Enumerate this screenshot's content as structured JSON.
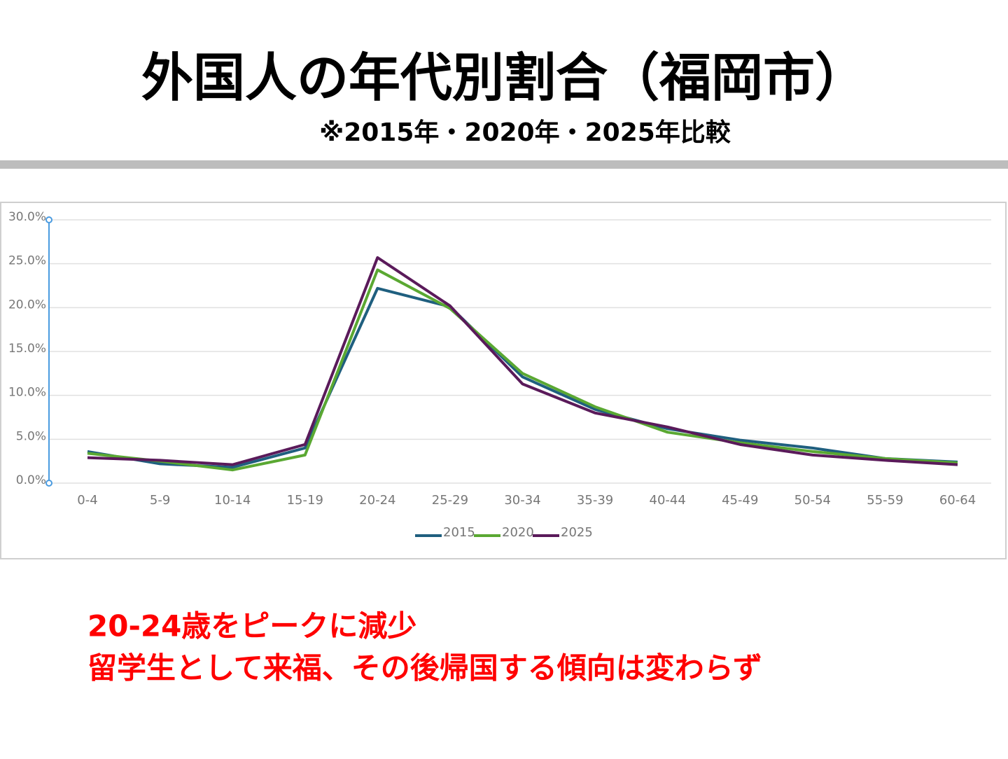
{
  "title": "外国人の年代別割合（福岡市）",
  "subtitle": "※2015年・2020年・2025年比較",
  "chart_data": {
    "type": "line",
    "categories": [
      "0-4",
      "5-9",
      "10-14",
      "15-19",
      "20-24",
      "25-29",
      "30-34",
      "35-39",
      "40-44",
      "45-49",
      "50-54",
      "55-59",
      "60-64"
    ],
    "series": [
      {
        "name": "2015",
        "color": "#1f5f7f",
        "values": [
          3.6,
          2.2,
          1.8,
          4.0,
          22.2,
          20.1,
          12.1,
          8.4,
          6.2,
          4.9,
          4.0,
          2.8,
          2.4
        ]
      },
      {
        "name": "2020",
        "color": "#5aa832",
        "values": [
          3.4,
          2.5,
          1.5,
          3.2,
          24.3,
          19.9,
          12.5,
          8.7,
          5.8,
          4.6,
          3.6,
          2.8,
          2.3
        ]
      },
      {
        "name": "2025",
        "color": "#5a1a5a",
        "values": [
          2.9,
          2.6,
          2.1,
          4.4,
          25.7,
          20.2,
          11.3,
          8.0,
          6.4,
          4.4,
          3.2,
          2.6,
          2.1
        ]
      }
    ],
    "ylim": [
      0,
      30
    ],
    "yticks": [
      {
        "value": 0,
        "label": "0.0%"
      },
      {
        "value": 5,
        "label": "5.0%"
      },
      {
        "value": 10,
        "label": "10.0%"
      },
      {
        "value": 15,
        "label": "15.0%"
      },
      {
        "value": 20,
        "label": "20.0%"
      },
      {
        "value": 25,
        "label": "25.0%"
      },
      {
        "value": 30,
        "label": "30.0%"
      }
    ],
    "grid": true,
    "legend": "bottom"
  },
  "notes": [
    "20-24歳をピークに減少",
    "留学生として来福、その後帰国する傾向は変わらず"
  ]
}
